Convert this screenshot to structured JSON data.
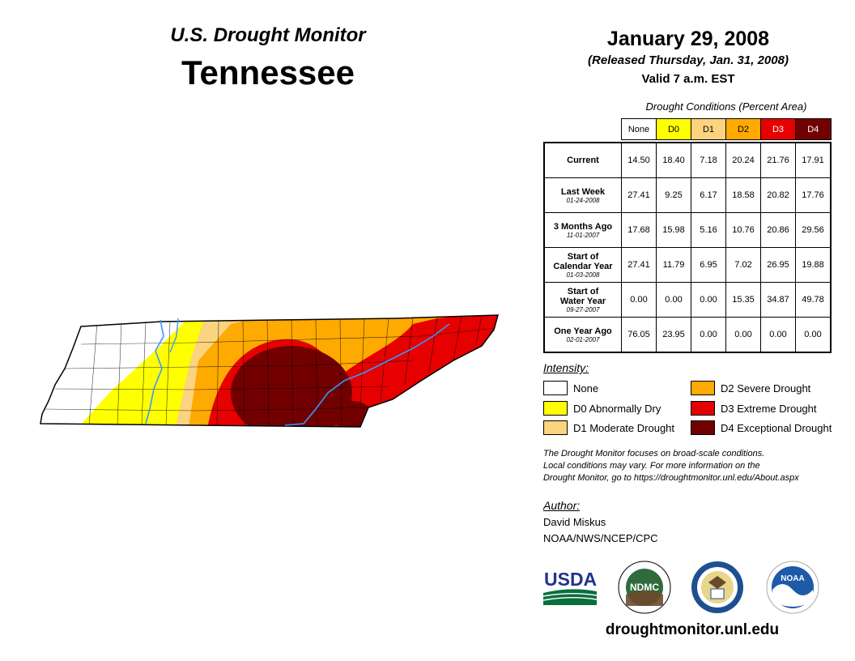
{
  "header": {
    "subtitle": "U.S. Drought Monitor",
    "state": "Tennessee",
    "date": "January 29, 2008",
    "released": "(Released Thursday, Jan. 31, 2008)",
    "valid": "Valid 7 a.m. EST"
  },
  "table": {
    "title": "Drought Conditions (Percent Area)",
    "columns": [
      "None",
      "D0",
      "D1",
      "D2",
      "D3",
      "D4"
    ],
    "column_colors": [
      "#ffffff",
      "#ffff00",
      "#fcd37f",
      "#ffaa00",
      "#e60000",
      "#730000"
    ],
    "column_text_colors": [
      "#000000",
      "#000000",
      "#000000",
      "#000000",
      "#ffffff",
      "#ffffff"
    ],
    "rows": [
      {
        "label": "Current",
        "label2": "",
        "date": "",
        "values": [
          "14.50",
          "18.40",
          "7.18",
          "20.24",
          "21.76",
          "17.91"
        ]
      },
      {
        "label": "Last Week",
        "label2": "",
        "date": "01-24-2008",
        "values": [
          "27.41",
          "9.25",
          "6.17",
          "18.58",
          "20.82",
          "17.76"
        ]
      },
      {
        "label": "3 Months Ago",
        "label2": "",
        "date": "11-01-2007",
        "values": [
          "17.68",
          "15.98",
          "5.16",
          "10.76",
          "20.86",
          "29.56"
        ]
      },
      {
        "label": "Start of",
        "label2": "Calendar Year",
        "date": "01-03-2008",
        "values": [
          "27.41",
          "11.79",
          "6.95",
          "7.02",
          "26.95",
          "19.88"
        ]
      },
      {
        "label": "Start of",
        "label2": "Water Year",
        "date": "09-27-2007",
        "values": [
          "0.00",
          "0.00",
          "0.00",
          "15.35",
          "34.87",
          "49.78"
        ]
      },
      {
        "label": "One Year Ago",
        "label2": "",
        "date": "02-01-2007",
        "values": [
          "76.05",
          "23.95",
          "0.00",
          "0.00",
          "0.00",
          "0.00"
        ]
      }
    ]
  },
  "legend": {
    "title": "Intensity:",
    "items": [
      {
        "label": "None",
        "color": "#ffffff"
      },
      {
        "label": "D0 Abnormally Dry",
        "color": "#ffff00"
      },
      {
        "label": "D1 Moderate Drought",
        "color": "#fcd37f"
      },
      {
        "label": "D2 Severe Drought",
        "color": "#ffaa00"
      },
      {
        "label": "D3 Extreme Drought",
        "color": "#e60000"
      },
      {
        "label": "D4 Exceptional Drought",
        "color": "#730000"
      }
    ]
  },
  "note": {
    "line1": "The Drought Monitor focuses on broad-scale conditions.",
    "line2": "Local conditions may vary. For more information on the",
    "line3": "Drought Monitor, go to https://droughtmonitor.unl.edu/About.aspx"
  },
  "author": {
    "title": "Author:",
    "name": "David Miskus",
    "org": "NOAA/NWS/NCEP/CPC"
  },
  "logos": {
    "usda": "USDA",
    "ndmc": "NDMC",
    "noaa": "NOAA"
  },
  "website": "droughtmonitor.unl.edu"
}
